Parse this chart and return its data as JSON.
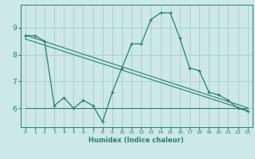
{
  "xlabel": "Humidex (Indice chaleur)",
  "ylabel": "",
  "bg_color": "#cce8e8",
  "line_color": "#2d7d6e",
  "grid_color": "#aacccc",
  "x_data": [
    0,
    1,
    2,
    3,
    4,
    5,
    6,
    7,
    8,
    9,
    10,
    11,
    12,
    13,
    14,
    15,
    16,
    17,
    18,
    19,
    20,
    21,
    22,
    23
  ],
  "y_main": [
    8.7,
    8.7,
    8.5,
    6.1,
    6.4,
    6.0,
    6.3,
    6.1,
    5.5,
    6.6,
    7.5,
    8.4,
    8.4,
    9.3,
    9.55,
    9.55,
    8.6,
    7.5,
    7.4,
    6.6,
    6.5,
    6.3,
    6.0,
    5.9
  ],
  "ylim": [
    5.3,
    9.85
  ],
  "xlim": [
    -0.5,
    23.5
  ],
  "yticks": [
    6,
    7,
    8,
    9
  ],
  "xticks": [
    0,
    1,
    2,
    3,
    4,
    5,
    6,
    7,
    8,
    9,
    10,
    11,
    12,
    13,
    14,
    15,
    16,
    17,
    18,
    19,
    20,
    21,
    22,
    23
  ],
  "trend1_x": [
    0,
    23
  ],
  "trend1_y": [
    8.72,
    6.02
  ],
  "trend2_x": [
    0,
    23
  ],
  "trend2_y": [
    8.58,
    5.92
  ],
  "trend3_x": [
    0,
    23
  ],
  "trend3_y": [
    6.0,
    6.0
  ]
}
